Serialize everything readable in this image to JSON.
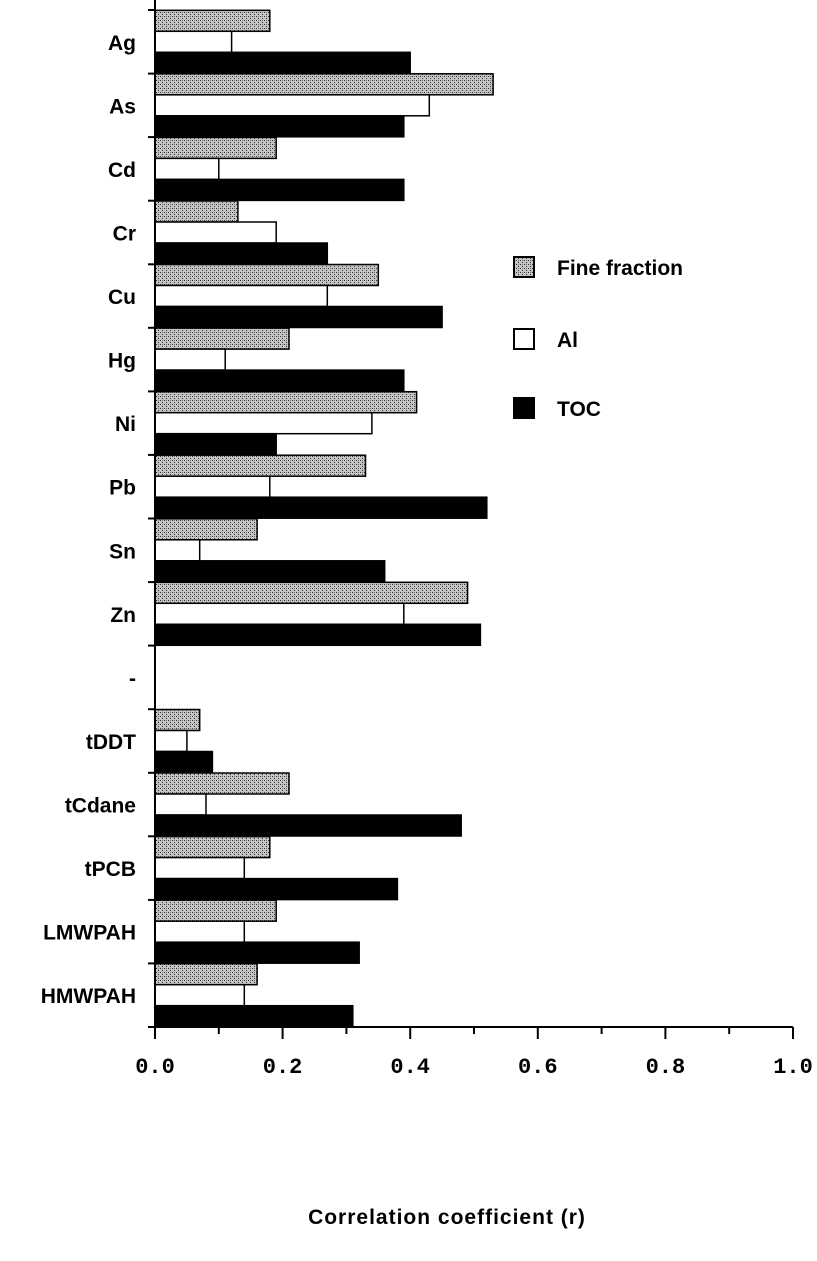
{
  "chart_data": {
    "type": "bar",
    "orientation": "horizontal",
    "categories": [
      "Ag",
      "As",
      "Cd",
      "Cr",
      "Cu",
      "Hg",
      "Ni",
      "Pb",
      "Sn",
      "Zn",
      "-",
      "tDDT",
      "tCdane",
      "tPCB",
      "LMWPAH",
      "HMWPAH"
    ],
    "series": [
      {
        "name": "Fine fraction",
        "color": "#9a9a9a",
        "pattern": "stipple",
        "values": [
          0.18,
          0.53,
          0.19,
          0.13,
          0.35,
          0.21,
          0.41,
          0.33,
          0.16,
          0.49,
          null,
          0.07,
          0.21,
          0.18,
          0.19,
          0.16
        ]
      },
      {
        "name": "Al",
        "color": "#ffffff",
        "pattern": "solid",
        "values": [
          0.12,
          0.43,
          0.1,
          0.19,
          0.27,
          0.11,
          0.34,
          0.18,
          0.07,
          0.39,
          null,
          0.05,
          0.08,
          0.14,
          0.14,
          0.14
        ]
      },
      {
        "name": "TOC",
        "color": "#000000",
        "pattern": "solid",
        "values": [
          0.4,
          0.39,
          0.39,
          0.27,
          0.45,
          0.39,
          0.19,
          0.52,
          0.36,
          0.51,
          null,
          0.09,
          0.48,
          0.38,
          0.32,
          0.31
        ]
      }
    ],
    "xlabel": "Correlation  coefficient  (r)",
    "ylabel": "",
    "xlim": [
      0.0,
      1.0
    ],
    "xticks": [
      "0.0",
      "0.2",
      "0.4",
      "0.6",
      "0.8",
      "1.0"
    ],
    "grid": false,
    "legend": {
      "position": "right",
      "entries": [
        "Fine fraction",
        "Al",
        "TOC"
      ]
    }
  }
}
